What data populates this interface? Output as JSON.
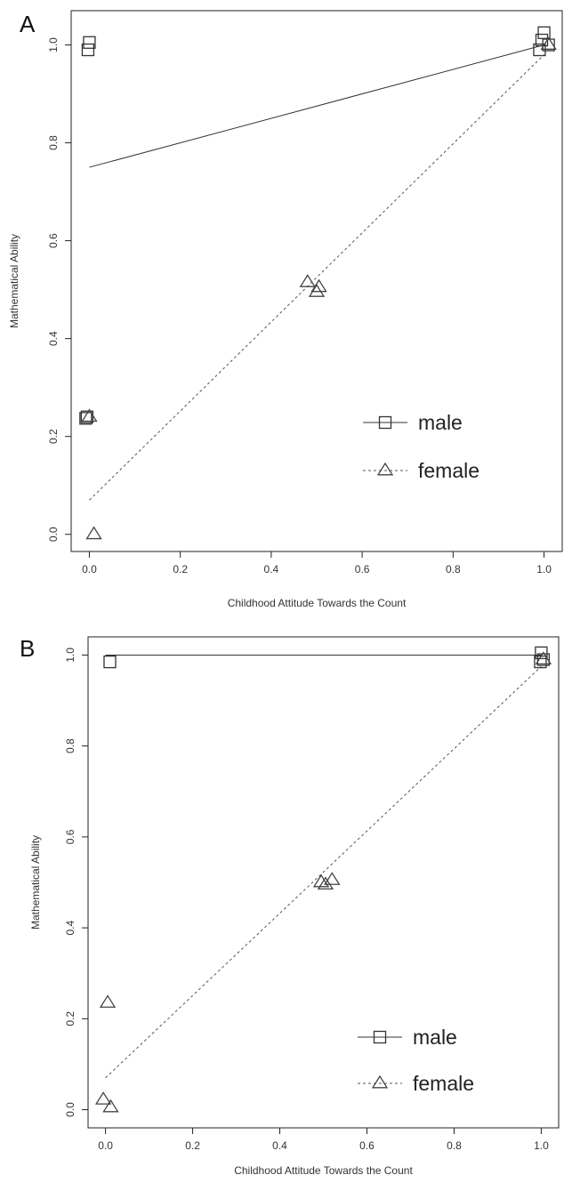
{
  "chart_data": [
    {
      "panel": "A",
      "type": "scatter",
      "xlabel": "Childhood Attitude Towards the Count",
      "ylabel": "Mathematical Ability",
      "xticks": [
        "0.0",
        "0.2",
        "0.4",
        "0.6",
        "0.8",
        "1.0"
      ],
      "yticks": [
        "0.0",
        "0.2",
        "0.4",
        "0.6",
        "0.8",
        "1.0"
      ],
      "xlim": [
        -0.04,
        1.04
      ],
      "ylim": [
        -0.035,
        1.07
      ],
      "grid": false,
      "legend": "bottom-right",
      "series": [
        {
          "name": "male",
          "marker": "square",
          "line": "solid",
          "points": [
            [
              0.0,
              1.005
            ],
            [
              -0.003,
              0.99
            ],
            [
              -0.005,
              0.24
            ],
            [
              -0.008,
              0.237
            ],
            [
              0.995,
              1.01
            ],
            [
              1.0,
              1.025
            ],
            [
              1.01,
              1.0
            ],
            [
              0.99,
              0.99
            ]
          ],
          "fit": [
            [
              0.0,
              0.75
            ],
            [
              1.0,
              1.0
            ]
          ]
        },
        {
          "name": "female",
          "marker": "triangle",
          "line": "dashed",
          "points": [
            [
              0.0,
              0.24
            ],
            [
              0.01,
              0.0
            ],
            [
              0.48,
              0.515
            ],
            [
              0.505,
              0.505
            ],
            [
              0.5,
              0.495
            ],
            [
              1.01,
              1.0
            ]
          ],
          "fit": [
            [
              0.0,
              0.07
            ],
            [
              1.0,
              0.98
            ]
          ]
        }
      ]
    },
    {
      "panel": "B",
      "type": "scatter",
      "xlabel": "Childhood Attitude Towards the Count",
      "ylabel": "Mathematical Ability",
      "xticks": [
        "0.0",
        "0.2",
        "0.4",
        "0.6",
        "0.8",
        "1.0"
      ],
      "yticks": [
        "0.0",
        "0.2",
        "0.4",
        "0.6",
        "0.8",
        "1.0"
      ],
      "xlim": [
        -0.04,
        1.04
      ],
      "ylim": [
        -0.04,
        1.04
      ],
      "grid": false,
      "legend": "bottom-right",
      "series": [
        {
          "name": "male",
          "marker": "square",
          "line": "solid",
          "points": [
            [
              0.01,
              0.985
            ],
            [
              1.0,
              1.005
            ],
            [
              1.005,
              0.99
            ],
            [
              0.998,
              0.985
            ]
          ],
          "fit": [
            [
              0.0,
              1.0
            ],
            [
              1.0,
              1.0
            ]
          ]
        },
        {
          "name": "female",
          "marker": "triangle",
          "line": "dashed",
          "points": [
            [
              0.005,
              0.235
            ],
            [
              -0.005,
              0.022
            ],
            [
              0.012,
              0.005
            ],
            [
              0.495,
              0.5
            ],
            [
              0.505,
              0.495
            ],
            [
              0.52,
              0.505
            ],
            [
              1.005,
              0.99
            ]
          ],
          "fit": [
            [
              0.0,
              0.07
            ],
            [
              1.0,
              0.975
            ]
          ]
        }
      ]
    }
  ]
}
